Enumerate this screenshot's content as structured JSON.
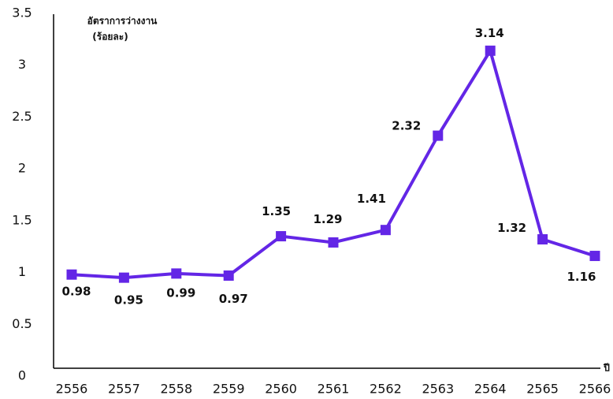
{
  "chart_data": {
    "type": "line",
    "y_label_lines": [
      "อัตราการว่างงาน",
      "(ร้อยละ)"
    ],
    "x_label": "ปี",
    "categories": [
      "2556",
      "2557",
      "2558",
      "2559",
      "2560",
      "2561",
      "2562",
      "2563",
      "2564",
      "2565",
      "2566"
    ],
    "series": [
      {
        "color": "#6326e6",
        "values": [
          0.98,
          0.95,
          0.99,
          0.97,
          1.35,
          1.29,
          1.41,
          2.32,
          3.14,
          1.32,
          1.16
        ]
      }
    ],
    "ylim": [
      0,
      3.5
    ],
    "yticks": [
      0,
      0.5,
      1,
      1.5,
      2,
      2.5,
      3,
      3.5
    ],
    "grid": false
  }
}
